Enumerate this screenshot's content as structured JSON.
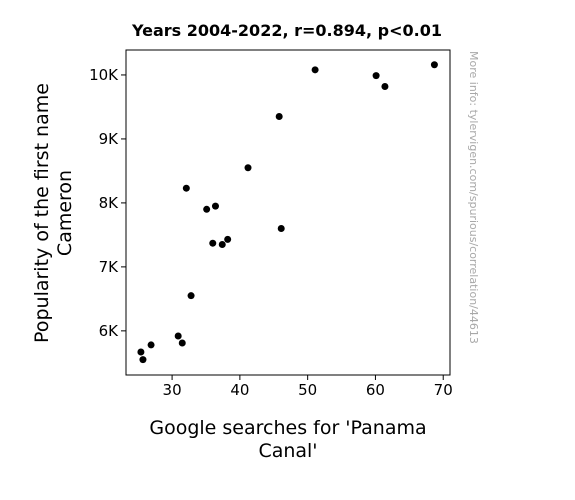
{
  "chart_data": {
    "type": "scatter",
    "title": "Years 2004-2022, r=0.894, p<0.01",
    "xlabel_lines": [
      "Google searches for 'Panama",
      "Canal'"
    ],
    "ylabel_lines": [
      "Popularity of the first name",
      "Cameron"
    ],
    "xlim": [
      23.2,
      71
    ],
    "ylim": [
      5310,
      10390
    ],
    "x_ticks": [
      30,
      40,
      50,
      60,
      70
    ],
    "x_tick_labels": [
      "30",
      "40",
      "50",
      "60",
      "70"
    ],
    "y_ticks": [
      6000,
      7000,
      8000,
      9000,
      10000
    ],
    "y_tick_labels": [
      "6K",
      "7K",
      "8K",
      "9K",
      "10K"
    ],
    "grid": false,
    "marker_color": "#000000",
    "points": [
      {
        "x": 25.4,
        "y": 5670
      },
      {
        "x": 25.7,
        "y": 5550
      },
      {
        "x": 26.9,
        "y": 5780
      },
      {
        "x": 30.9,
        "y": 5920
      },
      {
        "x": 31.5,
        "y": 5810
      },
      {
        "x": 32.1,
        "y": 8230
      },
      {
        "x": 32.8,
        "y": 6550
      },
      {
        "x": 35.1,
        "y": 7900
      },
      {
        "x": 36.0,
        "y": 7370
      },
      {
        "x": 36.4,
        "y": 7950
      },
      {
        "x": 37.4,
        "y": 7350
      },
      {
        "x": 38.2,
        "y": 7430
      },
      {
        "x": 41.2,
        "y": 8550
      },
      {
        "x": 45.8,
        "y": 9350
      },
      {
        "x": 46.1,
        "y": 7600
      },
      {
        "x": 51.1,
        "y": 10080
      },
      {
        "x": 60.1,
        "y": 9990
      },
      {
        "x": 61.4,
        "y": 9820
      },
      {
        "x": 68.7,
        "y": 10160
      }
    ]
  },
  "watermark": "More info: tylervigen.com/spurious/correlation/44613"
}
